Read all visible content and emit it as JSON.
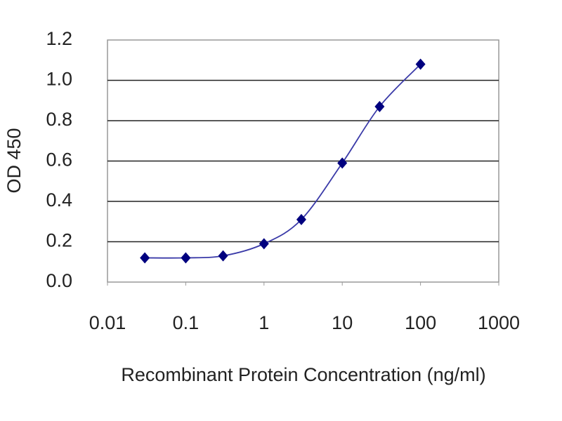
{
  "chart_data": {
    "type": "line",
    "x_label": "Recombinant Protein Concentration (ng/ml)",
    "y_label": "OD 450",
    "x": [
      0.03,
      0.1,
      0.3,
      1,
      3,
      10,
      30,
      100
    ],
    "series": [
      {
        "color": "#00007f",
        "values": [
          0.12,
          0.12,
          0.13,
          0.19,
          0.31,
          0.59,
          0.87,
          1.08
        ]
      }
    ],
    "xlim": [
      0.01,
      1000
    ],
    "xticks": [
      0.01,
      0.1,
      1,
      10,
      100,
      1000
    ],
    "x_scale": "log",
    "ylim": [
      0,
      1.2
    ],
    "yticks": [
      {
        "value": 0,
        "label": "0.0"
      },
      0.2,
      0.4,
      0.6,
      0.8,
      {
        "value": 1,
        "label": "1.0"
      },
      1.2
    ],
    "grid": true
  }
}
